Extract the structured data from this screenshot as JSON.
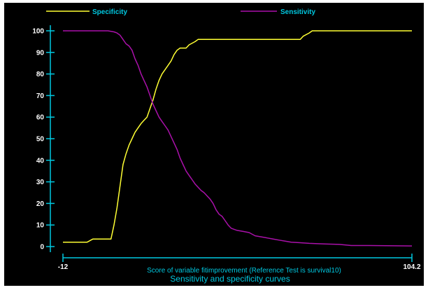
{
  "chart_data": {
    "type": "line",
    "title": "Sensitivity and specificity curves",
    "xlabel": "Score of variable fitimprovement (Reference Test is survival10)",
    "ylabel": "",
    "xlim": [
      -12,
      104.2
    ],
    "ylim": [
      0,
      100
    ],
    "x_tick_labels": [
      "-12",
      "104.2"
    ],
    "y_ticks": [
      0,
      10,
      20,
      30,
      40,
      50,
      60,
      70,
      80,
      90,
      100
    ],
    "y_tick_labels": [
      "0",
      "10",
      "20",
      "30",
      "40",
      "50",
      "60",
      "70",
      "80",
      "90",
      "100"
    ],
    "grid": false,
    "legend_position": "top",
    "background_color": "#000000",
    "axis_color": "#00c8e0",
    "series": [
      {
        "name": "Specificity",
        "color": "#ffff33",
        "points": [
          [
            -12,
            2
          ],
          [
            -4,
            2
          ],
          [
            -2,
            3.5
          ],
          [
            4,
            3.5
          ],
          [
            5,
            10
          ],
          [
            6,
            18
          ],
          [
            7,
            28
          ],
          [
            8,
            38
          ],
          [
            9,
            43
          ],
          [
            10,
            47
          ],
          [
            11,
            50
          ],
          [
            12,
            53
          ],
          [
            13,
            55
          ],
          [
            14,
            57
          ],
          [
            15,
            58.5
          ],
          [
            16,
            60
          ],
          [
            17,
            64
          ],
          [
            18,
            68
          ],
          [
            19,
            73
          ],
          [
            20,
            77
          ],
          [
            21,
            80
          ],
          [
            22,
            82
          ],
          [
            23,
            84
          ],
          [
            24,
            86
          ],
          [
            25,
            89
          ],
          [
            26,
            91
          ],
          [
            27,
            92
          ],
          [
            29,
            92
          ],
          [
            30,
            93.5
          ],
          [
            32,
            95
          ],
          [
            33,
            96
          ],
          [
            67,
            96
          ],
          [
            68,
            97.5
          ],
          [
            70,
            99
          ],
          [
            71,
            100
          ],
          [
            104.2,
            100
          ]
        ]
      },
      {
        "name": "Sensitivity",
        "color": "#aa11aa",
        "points": [
          [
            -12,
            100
          ],
          [
            3,
            100
          ],
          [
            5,
            99.5
          ],
          [
            6,
            99
          ],
          [
            7,
            98
          ],
          [
            8,
            96
          ],
          [
            9,
            94
          ],
          [
            10,
            93
          ],
          [
            11,
            91
          ],
          [
            12,
            87
          ],
          [
            13,
            84
          ],
          [
            14,
            80
          ],
          [
            15,
            77
          ],
          [
            16,
            74
          ],
          [
            17,
            70
          ],
          [
            18,
            66
          ],
          [
            19,
            63
          ],
          [
            20,
            60
          ],
          [
            21,
            58
          ],
          [
            22,
            56
          ],
          [
            23,
            54
          ],
          [
            24,
            51
          ],
          [
            25,
            48
          ],
          [
            26,
            45
          ],
          [
            27,
            41
          ],
          [
            28,
            38
          ],
          [
            29,
            35
          ],
          [
            30,
            33
          ],
          [
            31,
            31
          ],
          [
            32,
            29
          ],
          [
            33,
            27.5
          ],
          [
            34,
            26
          ],
          [
            35,
            25
          ],
          [
            36,
            23.5
          ],
          [
            37,
            22
          ],
          [
            38,
            20
          ],
          [
            39,
            17
          ],
          [
            40,
            15
          ],
          [
            41,
            14
          ],
          [
            42,
            12
          ],
          [
            43,
            10
          ],
          [
            44,
            8.5
          ],
          [
            45,
            8
          ],
          [
            46,
            7.5
          ],
          [
            48,
            7
          ],
          [
            50,
            6.5
          ],
          [
            52,
            5
          ],
          [
            54,
            4.5
          ],
          [
            56,
            4
          ],
          [
            58,
            3.5
          ],
          [
            60,
            3
          ],
          [
            62,
            2.5
          ],
          [
            64,
            2
          ],
          [
            67,
            1.8
          ],
          [
            70,
            1.5
          ],
          [
            75,
            1.2
          ],
          [
            80,
            1
          ],
          [
            84,
            0.5
          ],
          [
            90,
            0.5
          ],
          [
            104.2,
            0.3
          ]
        ]
      }
    ]
  }
}
